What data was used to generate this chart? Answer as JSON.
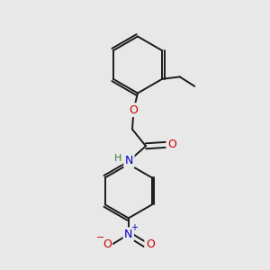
{
  "background_color": "#e8e8e8",
  "bond_color": "#1a1a1a",
  "atom_colors": {
    "O": "#cc0000",
    "N": "#0000cc",
    "H": "#3a7a3a"
  },
  "figsize": [
    3.0,
    3.0
  ],
  "dpi": 100,
  "lw": 1.4
}
